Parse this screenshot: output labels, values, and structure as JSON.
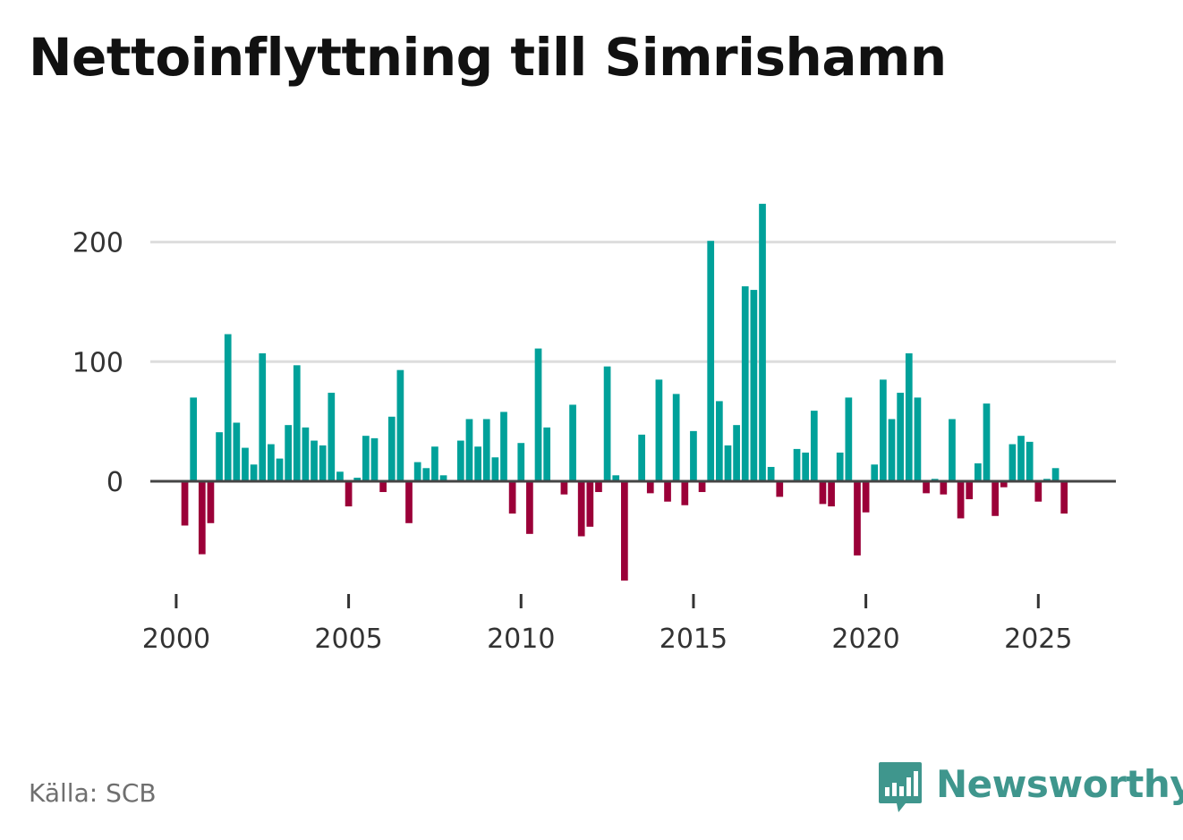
{
  "title": "Nettoinflyttning till Simrishamn",
  "source": "Källa: SCB",
  "brand": {
    "name": "Newsworthy",
    "icon": "newsworthy-logo-icon",
    "color": "#3f968d"
  },
  "colors": {
    "positive": "#00a19a",
    "negative": "#9b0038",
    "grid": "#dddddd",
    "baseline": "#444444"
  },
  "chart_data": {
    "type": "bar",
    "title": "Nettoinflyttning till Simrishamn",
    "xlabel": "",
    "ylabel": "",
    "frequency": "quarterly",
    "x_start": 2000.25,
    "x_step": 0.25,
    "xlim": [
      1999.25,
      2027.25
    ],
    "ylim": [
      -100,
      230
    ],
    "yticks": [
      0,
      100,
      200
    ],
    "ytick_labels": [
      "0",
      "100",
      "200"
    ],
    "xticks": [
      2000,
      2005,
      2010,
      2015,
      2020,
      2025
    ],
    "xtick_labels": [
      "2000",
      "2005",
      "2010",
      "2015",
      "2020",
      "2025"
    ],
    "grid": true,
    "legend": false,
    "values": [
      -37,
      70,
      -61,
      -35,
      41,
      123,
      49,
      28,
      14,
      107,
      31,
      19,
      47,
      97,
      45,
      34,
      30,
      74,
      8,
      -21,
      3,
      38,
      36,
      -9,
      54,
      93,
      -35,
      16,
      11,
      29,
      5,
      0,
      34,
      52,
      29,
      52,
      20,
      58,
      -27,
      32,
      -44,
      111,
      45,
      0,
      -11,
      64,
      -46,
      -38,
      -9,
      96,
      5,
      -83,
      0,
      39,
      -10,
      85,
      -17,
      73,
      -20,
      42,
      -9,
      201,
      67,
      30,
      47,
      163,
      160,
      232,
      12,
      -13,
      0,
      27,
      24,
      59,
      -19,
      -21,
      24,
      70,
      -62,
      -26,
      14,
      85,
      52,
      74,
      107,
      70,
      -10,
      2,
      -11,
      52,
      -31,
      -15,
      15,
      65,
      -29,
      -5,
      31,
      38,
      33,
      -17,
      2,
      11,
      -27
    ]
  }
}
